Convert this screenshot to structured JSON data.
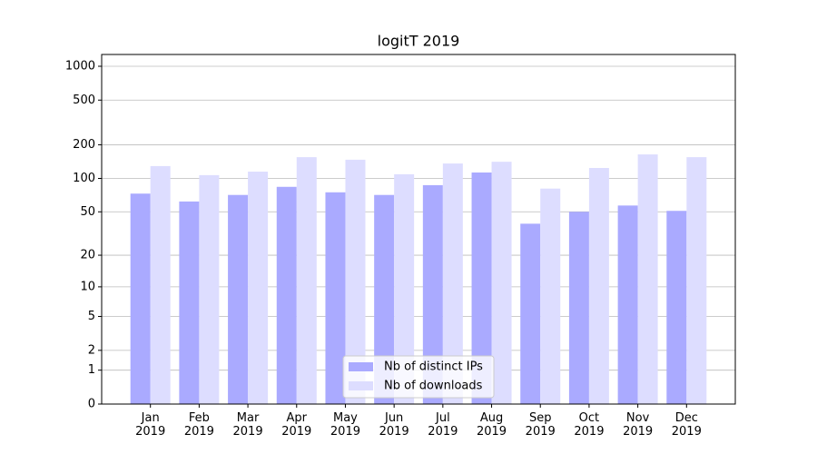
{
  "chart_data": {
    "type": "bar",
    "title": "logitT 2019",
    "categories": [
      "Jan\n2019",
      "Feb\n2019",
      "Mar\n2019",
      "Apr\n2019",
      "May\n2019",
      "Jun\n2019",
      "Jul\n2019",
      "Aug\n2019",
      "Sep\n2019",
      "Oct\n2019",
      "Nov\n2019",
      "Dec\n2019"
    ],
    "series": [
      {
        "name": "Nb of distinct IPs",
        "color": "#aaaaff",
        "values": [
          73,
          62,
          71,
          84,
          75,
          71,
          87,
          113,
          39,
          50,
          57,
          51
        ]
      },
      {
        "name": "Nb of downloads",
        "color": "#ddddff",
        "values": [
          129,
          107,
          115,
          155,
          147,
          109,
          136,
          141,
          81,
          124,
          164,
          155
        ]
      }
    ],
    "y_scale": "log1p",
    "ylim": [
      0,
      1273
    ],
    "yticks": [
      0,
      1,
      2,
      5,
      10,
      20,
      50,
      100,
      200,
      500,
      1000
    ],
    "grid": true,
    "legend": "lower center"
  }
}
